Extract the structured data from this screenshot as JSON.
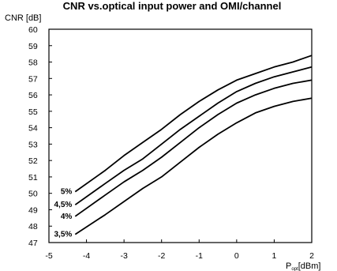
{
  "chart_data": {
    "type": "line",
    "title": "CNR vs.optical input power and OMI/channel",
    "ylabel": "CNR [dB]",
    "xlabel_main": "P",
    "xlabel_sub": "opt",
    "xlabel_unit": "[dBm]",
    "xlim": [
      -5,
      2
    ],
    "ylim": [
      47,
      60
    ],
    "x_ticks": [
      "-5",
      "-4",
      "-3",
      "-2",
      "-1",
      "0",
      "1",
      "2"
    ],
    "y_ticks": [
      "47",
      "48",
      "49",
      "50",
      "51",
      "52",
      "53",
      "54",
      "55",
      "56",
      "57",
      "58",
      "59",
      "60"
    ],
    "grid": false,
    "legend": "labels at start of each line",
    "series": [
      {
        "name": "5%",
        "x": [
          -4.3,
          -3.5,
          -3,
          -2.5,
          -2,
          -1.5,
          -1,
          -0.5,
          0,
          0.5,
          1,
          1.5,
          2
        ],
        "values": [
          50.1,
          51.4,
          52.3,
          53.1,
          53.9,
          54.8,
          55.6,
          56.3,
          56.9,
          57.3,
          57.7,
          58.0,
          58.4
        ]
      },
      {
        "name": "4,5%",
        "x": [
          -4.3,
          -3.5,
          -3,
          -2.5,
          -2,
          -1.5,
          -1,
          -0.5,
          0,
          0.5,
          1,
          1.5,
          2
        ],
        "values": [
          49.3,
          50.6,
          51.4,
          52.1,
          53.0,
          53.9,
          54.7,
          55.5,
          56.2,
          56.7,
          57.1,
          57.4,
          57.7
        ]
      },
      {
        "name": "4%",
        "x": [
          -4.3,
          -3.5,
          -3,
          -2.5,
          -2,
          -1.5,
          -1,
          -0.5,
          0,
          0.5,
          1,
          1.5,
          2
        ],
        "values": [
          48.6,
          49.9,
          50.7,
          51.4,
          52.2,
          53.1,
          54.0,
          54.8,
          55.5,
          56.0,
          56.4,
          56.7,
          56.9
        ]
      },
      {
        "name": "3,5%",
        "x": [
          -4.3,
          -3.5,
          -3,
          -2.5,
          -2,
          -1.5,
          -1,
          -0.5,
          0,
          0.5,
          1,
          1.5,
          2
        ],
        "values": [
          47.5,
          48.7,
          49.5,
          50.3,
          51.0,
          51.9,
          52.8,
          53.6,
          54.3,
          54.9,
          55.3,
          55.6,
          55.8
        ]
      }
    ]
  }
}
